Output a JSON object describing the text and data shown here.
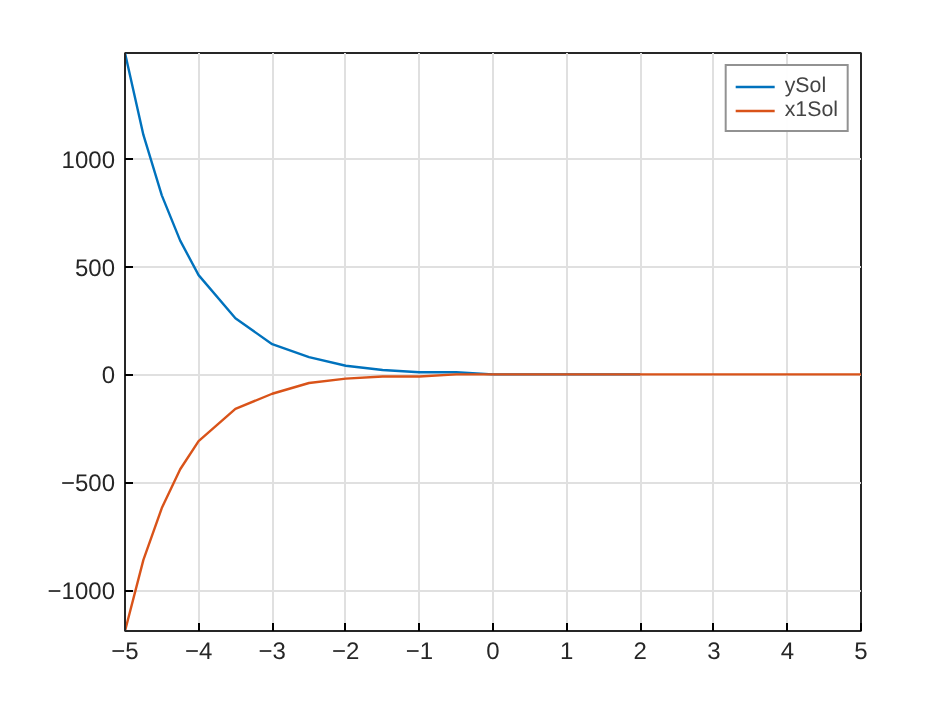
{
  "chart_data": {
    "type": "line",
    "x": [
      -5,
      -4.75,
      -4.5,
      -4.25,
      -4,
      -3.5,
      -3,
      -2.5,
      -2,
      -1.5,
      -1,
      -0.5,
      0,
      1,
      2,
      3,
      4,
      5
    ],
    "series": [
      {
        "name": "ySol",
        "color": "#0072bd",
        "values": [
          1490,
          1110,
          830,
          620,
          460,
          260,
          140,
          80,
          40,
          20,
          10,
          10,
          0,
          0,
          0,
          null,
          null,
          null
        ]
      },
      {
        "name": "x1Sol",
        "color": "#d95319",
        "values": [
          -1190,
          -860,
          -620,
          -440,
          -310,
          -160,
          -90,
          -40,
          -20,
          -10,
          -10,
          0,
          0,
          0,
          0,
          0,
          0,
          0
        ]
      }
    ],
    "xlim": [
      -5,
      5
    ],
    "ylim": [
      -1190,
      1490
    ],
    "xticks": [
      -5,
      -4,
      -3,
      -2,
      -1,
      0,
      1,
      2,
      3,
      4,
      5
    ],
    "yticks": [
      -1000,
      -500,
      0,
      500,
      1000
    ],
    "grid": true,
    "legend": "top right",
    "line_style": "solid",
    "marker": "none"
  }
}
